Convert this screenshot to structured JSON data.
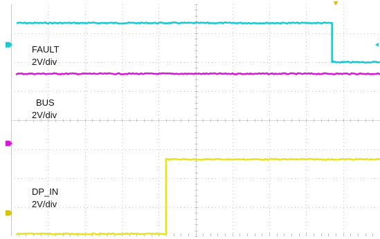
{
  "chart_data": {
    "type": "line",
    "grid": true,
    "x": {
      "divisions": 10,
      "range": [
        0,
        10
      ]
    },
    "y": {
      "divisions": 8,
      "range": [
        0,
        8
      ]
    },
    "trigger_position": 8.8,
    "series": [
      {
        "name": "FAULT",
        "scale": "2V/div",
        "color": "#1ec8d2",
        "ground_level": 6.6,
        "marker_color": "#1ec8d2",
        "points": [
          [
            0.15,
            7.35
          ],
          [
            8.7,
            7.35
          ],
          [
            8.7,
            6.0
          ],
          [
            10,
            6.0
          ]
        ]
      },
      {
        "name": "BUS",
        "scale": "2V/div",
        "color": "#d61ad6",
        "ground_level": 3.2,
        "marker_color": "#d61ad6",
        "points": [
          [
            0.15,
            5.6
          ],
          [
            10,
            5.6
          ]
        ]
      },
      {
        "name": "DP_IN",
        "scale": "2V/div",
        "color": "#e8e41c",
        "ground_level": 0.8,
        "marker_color": "#d8c400",
        "points": [
          [
            0.15,
            0.08
          ],
          [
            4.2,
            0.08
          ],
          [
            4.2,
            2.65
          ],
          [
            10,
            2.65
          ]
        ]
      }
    ]
  }
}
